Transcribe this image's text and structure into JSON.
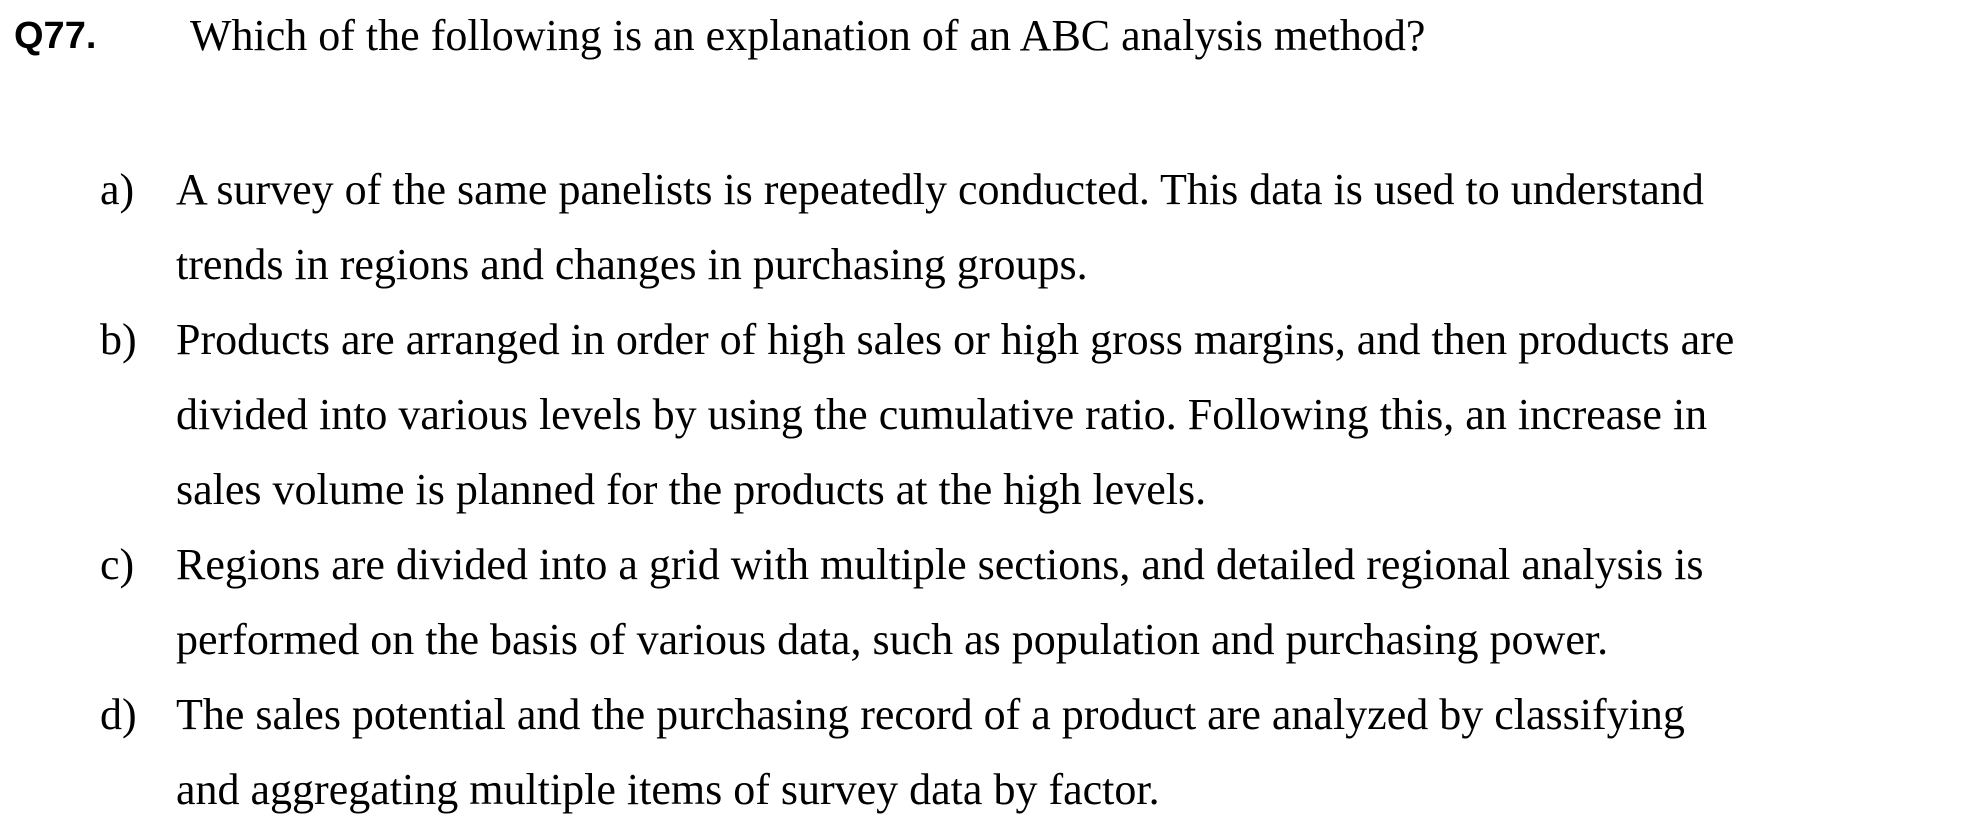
{
  "question": {
    "number": "Q77.",
    "text": "Which of the following is an explanation of an ABC analysis method?"
  },
  "options": [
    {
      "label": "a)",
      "lines": [
        "A survey of the same panelists is repeatedly conducted. This data is used to understand",
        "trends in regions and changes in purchasing groups."
      ]
    },
    {
      "label": "b)",
      "lines": [
        "Products are arranged in order of high sales or high gross margins, and then products are",
        "divided into various levels by using the cumulative ratio. Following this, an increase in",
        "sales volume is planned for the products at the high levels."
      ]
    },
    {
      "label": "c)",
      "lines": [
        "Regions are divided into a grid with multiple sections, and detailed regional analysis is",
        "performed on the basis of various data, such as population and purchasing power."
      ]
    },
    {
      "label": "d)",
      "lines": [
        "The sales potential and the purchasing record of a product are analyzed by classifying",
        "and aggregating multiple items of survey data by factor."
      ]
    }
  ]
}
